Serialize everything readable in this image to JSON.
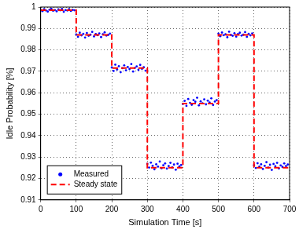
{
  "chart_data": {
    "type": "scatter",
    "x_label": "Simulation Time [s]",
    "y_label": "Idle Probability [%]",
    "xlim": [
      0,
      700
    ],
    "xticks": [
      0,
      100,
      200,
      300,
      400,
      500,
      600,
      700
    ],
    "ylim": [
      0.91,
      1
    ],
    "yticks": [
      0.91,
      0.92,
      0.93,
      0.94,
      0.95,
      0.96,
      0.97,
      0.98,
      0.99,
      1
    ],
    "grid": true,
    "legend": "lower left",
    "series": [
      {
        "name": "Measured",
        "color": "#0000ff",
        "marker": "circle",
        "type": "scatter",
        "x": [
          0,
          5,
          10,
          15,
          20,
          25,
          30,
          35,
          40,
          45,
          50,
          55,
          60,
          65,
          70,
          75,
          80,
          85,
          90,
          95,
          100,
          105,
          110,
          115,
          120,
          125,
          130,
          135,
          140,
          145,
          150,
          155,
          160,
          165,
          170,
          175,
          180,
          185,
          190,
          195,
          200,
          205,
          210,
          215,
          220,
          225,
          230,
          235,
          240,
          245,
          250,
          255,
          260,
          265,
          270,
          275,
          280,
          285,
          290,
          295,
          300,
          305,
          310,
          315,
          320,
          325,
          330,
          335,
          340,
          345,
          350,
          355,
          360,
          365,
          370,
          375,
          380,
          385,
          390,
          395,
          400,
          405,
          410,
          415,
          420,
          425,
          430,
          435,
          440,
          445,
          450,
          455,
          460,
          465,
          470,
          475,
          480,
          485,
          490,
          495,
          500,
          505,
          510,
          515,
          520,
          525,
          530,
          535,
          540,
          545,
          550,
          555,
          560,
          565,
          570,
          575,
          580,
          585,
          590,
          595,
          600,
          605,
          610,
          615,
          620,
          625,
          630,
          635,
          640,
          645,
          650,
          655,
          660,
          665,
          670,
          675,
          680,
          685,
          690,
          695
        ],
        "values": [
          0.9987,
          0.9981,
          0.999,
          0.9984,
          0.9979,
          0.9988,
          0.9992,
          0.9983,
          0.9986,
          0.998,
          0.9989,
          0.9985,
          0.9991,
          0.9978,
          0.9986,
          0.9984,
          0.999,
          0.9982,
          0.9987,
          0.9985,
          0.9872,
          0.9861,
          0.988,
          0.9868,
          0.9875,
          0.9858,
          0.9879,
          0.9866,
          0.9871,
          0.9884,
          0.9863,
          0.9874,
          0.9869,
          0.9877,
          0.986,
          0.9873,
          0.9882,
          0.9867,
          0.987,
          0.9876,
          0.9718,
          0.9702,
          0.9731,
          0.9709,
          0.9724,
          0.9696,
          0.9715,
          0.9728,
          0.9705,
          0.972,
          0.9711,
          0.9734,
          0.9699,
          0.9716,
          0.9723,
          0.9707,
          0.973,
          0.9712,
          0.9719,
          0.9703,
          0.9268,
          0.9251,
          0.9274,
          0.9259,
          0.9243,
          0.9266,
          0.9255,
          0.9279,
          0.9248,
          0.9262,
          0.927,
          0.9246,
          0.9258,
          0.9273,
          0.9252,
          0.9265,
          0.9241,
          0.9269,
          0.9256,
          0.9263,
          0.9548,
          0.9562,
          0.9539,
          0.9571,
          0.9553,
          0.9544,
          0.9566,
          0.9558,
          0.9577,
          0.9541,
          0.956,
          0.9551,
          0.9569,
          0.9546,
          0.9563,
          0.9555,
          0.9574,
          0.9543,
          0.9559,
          0.9566,
          0.9876,
          0.9864,
          0.9881,
          0.9869,
          0.9873,
          0.9859,
          0.9885,
          0.987,
          0.9866,
          0.9878,
          0.9862,
          0.9874,
          0.988,
          0.9867,
          0.9871,
          0.9883,
          0.9861,
          0.9875,
          0.9868,
          0.9877,
          0.9262,
          0.9249,
          0.9271,
          0.9255,
          0.9266,
          0.9244,
          0.9259,
          0.9276,
          0.9251,
          0.9264,
          0.924,
          0.9268,
          0.9257,
          0.9273,
          0.9247,
          0.9261,
          0.9254,
          0.927,
          0.9258,
          0.9265
        ]
      },
      {
        "name": "Steady state",
        "color": "#ff0000",
        "type": "line",
        "line_style": "dashed",
        "x": [
          0,
          100,
          100,
          200,
          200,
          300,
          300,
          400,
          400,
          500,
          500,
          600,
          600,
          700
        ],
        "values": [
          0.9985,
          0.9985,
          0.987,
          0.987,
          0.9715,
          0.9715,
          0.925,
          0.925,
          0.955,
          0.955,
          0.987,
          0.987,
          0.925,
          0.925
        ]
      }
    ]
  }
}
